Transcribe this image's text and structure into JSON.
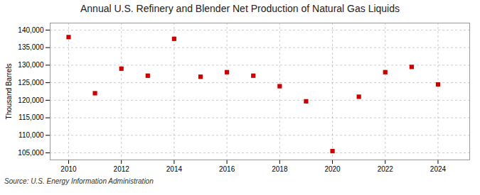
{
  "chart_data": {
    "type": "scatter",
    "title": "Annual U.S. Refinery and Blender Net Production of Natural Gas Liquids",
    "ylabel": "Thousand Barrels",
    "source": "Source: U.S. Energy Information Administration",
    "x": [
      2010,
      2011,
      2012,
      2013,
      2014,
      2015,
      2016,
      2017,
      2018,
      2019,
      2020,
      2021,
      2022,
      2023,
      2024
    ],
    "values": [
      138000,
      122000,
      129000,
      127000,
      137500,
      126700,
      128000,
      127000,
      124000,
      119700,
      105500,
      121000,
      128000,
      129500,
      124500
    ],
    "color": "#CC0000",
    "marker": "square",
    "xlim": [
      2009.3,
      2025.2
    ],
    "xticks": [
      2010,
      2012,
      2014,
      2016,
      2018,
      2020,
      2022,
      2024
    ],
    "ylim": [
      103000,
      142000
    ],
    "yticks": [
      {
        "value": 105000,
        "label": "105,000"
      },
      {
        "value": 110000,
        "label": "110,000"
      },
      {
        "value": 115000,
        "label": "115,000"
      },
      {
        "value": 120000,
        "label": "120,000"
      },
      {
        "value": 125000,
        "label": "125,000"
      },
      {
        "value": 130000,
        "label": "130,000"
      },
      {
        "value": 135000,
        "label": "135,000"
      },
      {
        "value": 140000,
        "label": "140,000"
      }
    ],
    "grid": true
  }
}
